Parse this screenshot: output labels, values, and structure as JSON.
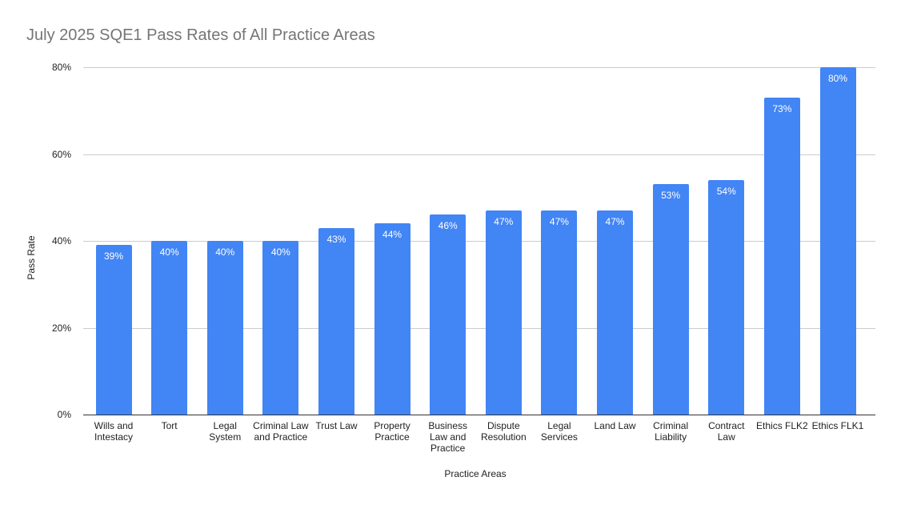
{
  "chart_data": {
    "type": "bar",
    "title": "July 2025 SQE1 Pass Rates of All Practice Areas",
    "xlabel": "Practice Areas",
    "ylabel": "Pass Rate",
    "ylim": [
      0,
      80
    ],
    "yticks": [
      "0%",
      "20%",
      "40%",
      "60%",
      "80%"
    ],
    "grid": true,
    "legend": "none",
    "bar_color": "#4285f4",
    "categories": [
      "Wills and Intestacy",
      "Tort",
      "Legal System",
      "Criminal Law and Practice",
      "Trust Law",
      "Property Practice",
      "Business Law and Practice",
      "Dispute Resolution",
      "Legal Services",
      "Land Law",
      "Criminal Liability",
      "Contract Law",
      "Ethics FLK2",
      "Ethics FLK1"
    ],
    "values": [
      39,
      40,
      40,
      40,
      43,
      44,
      46,
      47,
      47,
      47,
      53,
      54,
      73,
      80
    ],
    "data_labels": [
      "39%",
      "40%",
      "40%",
      "40%",
      "43%",
      "44%",
      "46%",
      "47%",
      "47%",
      "47%",
      "53%",
      "54%",
      "73%",
      "80%"
    ]
  }
}
